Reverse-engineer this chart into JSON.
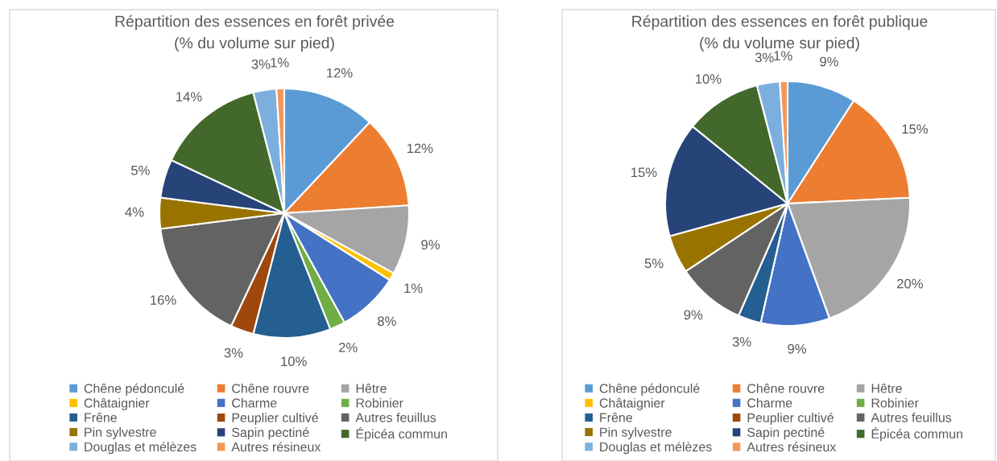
{
  "chart_data": [
    {
      "type": "pie",
      "title": "Répartition des essences en forêt privée",
      "subtitle": "(% du volume sur pied)",
      "categories": [
        "Chêne pédonculé",
        "Chêne rouvre",
        "Hêtre",
        "Châtaignier",
        "Charme",
        "Robinier",
        "Frêne",
        "Peuplier cultivé",
        "Autres feuillus",
        "Pin sylvestre",
        "Sapin pectiné",
        "Épicéa commun",
        "Douglas et mélèzes",
        "Autres résineux"
      ],
      "values": [
        12,
        12,
        9,
        1,
        8,
        2,
        10,
        3,
        16,
        4,
        5,
        14,
        3,
        1
      ],
      "value_labels": [
        "12%",
        "12%",
        "9%",
        "1%",
        "8%",
        "2%",
        "10%",
        "3%",
        "16%",
        "4%",
        "5%",
        "14%",
        "3%",
        "1%"
      ],
      "colors": [
        "#5b9bd5",
        "#ed7d31",
        "#a5a5a5",
        "#ffc000",
        "#4472c4",
        "#70ad47",
        "#255e91",
        "#9e480e",
        "#636363",
        "#997300",
        "#264478",
        "#43682b",
        "#7cafdd",
        "#f1975a"
      ],
      "legend": "bottom"
    },
    {
      "type": "pie",
      "title": "Répartition des essences en forêt publique",
      "subtitle": "(% du volume sur pied)",
      "categories": [
        "Chêne pédonculé",
        "Chêne rouvre",
        "Hêtre",
        "Châtaignier",
        "Charme",
        "Robinier",
        "Frêne",
        "Peuplier cultivé",
        "Autres feuillus",
        "Pin sylvestre",
        "Sapin pectiné",
        "Épicéa commun",
        "Douglas et mélèzes",
        "Autres résineux"
      ],
      "values": [
        9,
        15,
        20,
        0,
        9,
        0,
        3,
        0,
        9,
        5,
        15,
        10,
        3,
        1
      ],
      "value_labels": [
        "9%",
        "15%",
        "20%",
        null,
        "9%",
        null,
        "3%",
        null,
        "9%",
        "5%",
        "15%",
        "10%",
        "3%",
        "1%"
      ],
      "colors": [
        "#5b9bd5",
        "#ed7d31",
        "#a5a5a5",
        "#ffc000",
        "#4472c4",
        "#70ad47",
        "#255e91",
        "#9e480e",
        "#636363",
        "#997300",
        "#264478",
        "#43682b",
        "#7cafdd",
        "#f1975a"
      ],
      "legend": "bottom"
    }
  ]
}
